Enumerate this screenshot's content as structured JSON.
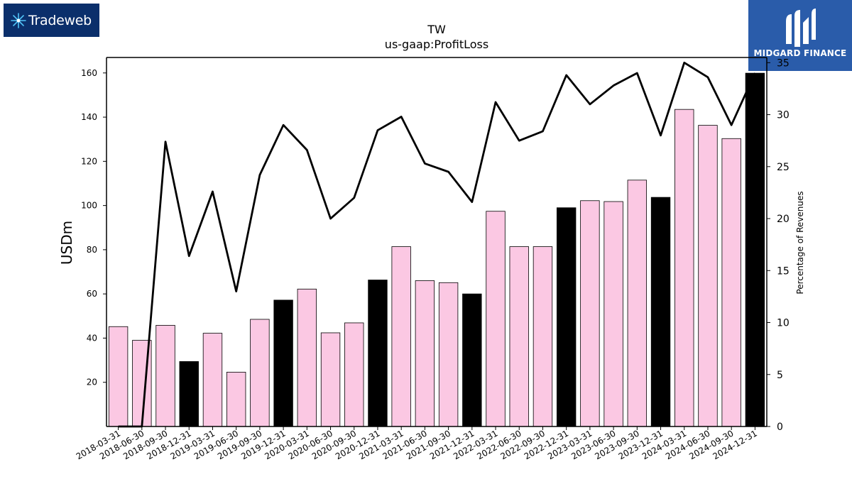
{
  "logos": {
    "left_name": "Tradeweb",
    "right_name": "MIDGARD FINANCE"
  },
  "colors": {
    "bar_default": "#fbc8e3",
    "bar_highlight": "#000000",
    "line": "#000000",
    "logo_left_bg": "#0b2f6b",
    "logo_right_bg": "#2a5caa"
  },
  "chart_data": {
    "type": "bar",
    "title": "TW",
    "subtitle": "us-gaap:ProfitLoss",
    "ylabel": "USDm",
    "y2label": "Percentage of Revenues",
    "ylim": [
      0,
      167
    ],
    "y2lim": [
      0,
      35.5
    ],
    "yticks": [
      20,
      40,
      60,
      80,
      100,
      120,
      140,
      160
    ],
    "y2ticks": [
      0,
      5,
      10,
      15,
      20,
      25,
      30,
      35
    ],
    "grid": false,
    "categories": [
      "2018-03-31",
      "2018-06-30",
      "2018-09-30",
      "2018-12-31",
      "2019-03-31",
      "2019-06-30",
      "2019-09-30",
      "2019-12-31",
      "2020-03-31",
      "2020-06-30",
      "2020-09-30",
      "2020-12-31",
      "2021-03-31",
      "2021-06-30",
      "2021-09-30",
      "2021-12-31",
      "2022-03-31",
      "2022-06-30",
      "2022-09-30",
      "2022-12-31",
      "2023-03-31",
      "2023-06-30",
      "2023-09-30",
      "2023-12-31",
      "2024-03-31",
      "2024-06-30",
      "2024-09-30",
      "2024-12-31"
    ],
    "series": [
      {
        "kind": "bar",
        "axis": "left",
        "values": [
          45.2,
          39.0,
          45.8,
          29.4,
          42.2,
          24.6,
          48.5,
          57.2,
          62.2,
          42.4,
          46.9,
          66.3,
          81.4,
          66.0,
          65.1,
          60.0,
          97.4,
          81.4,
          81.4,
          99.0,
          102.2,
          101.8,
          111.5,
          103.7,
          143.5,
          136.3,
          130.3,
          159.9
        ],
        "highlight": [
          false,
          false,
          false,
          true,
          false,
          false,
          false,
          true,
          false,
          false,
          false,
          true,
          false,
          false,
          false,
          true,
          false,
          false,
          false,
          true,
          false,
          false,
          false,
          true,
          false,
          false,
          false,
          true
        ]
      },
      {
        "kind": "line",
        "axis": "right",
        "values": [
          0.0,
          0.0,
          27.4,
          16.4,
          22.6,
          13.0,
          24.2,
          29.0,
          26.6,
          20.0,
          22.0,
          28.5,
          29.8,
          25.3,
          24.5,
          21.6,
          31.2,
          27.5,
          28.4,
          33.8,
          31.0,
          32.8,
          34.0,
          28.0,
          35.0,
          33.6,
          29.0,
          34.0
        ]
      }
    ]
  }
}
